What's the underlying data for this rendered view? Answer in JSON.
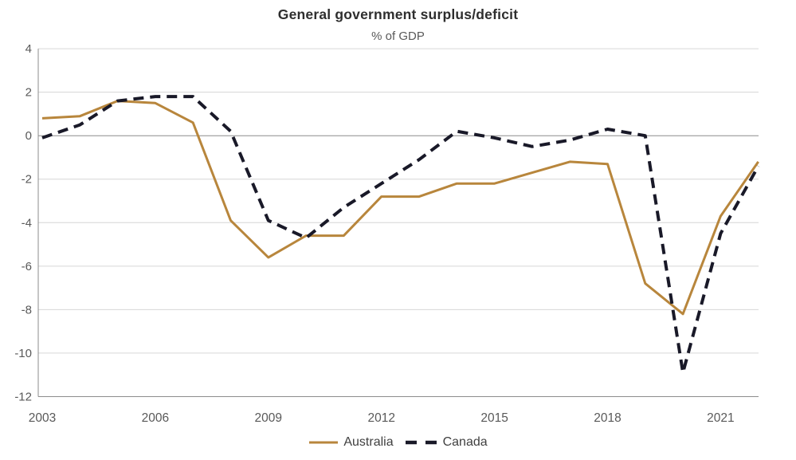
{
  "chart_data": {
    "type": "line",
    "title": "General government surplus/deficit",
    "subtitle": "% of GDP",
    "x": [
      2003,
      2004,
      2005,
      2006,
      2007,
      2008,
      2009,
      2010,
      2011,
      2012,
      2013,
      2014,
      2015,
      2016,
      2017,
      2018,
      2019,
      2020,
      2021,
      2022
    ],
    "series": [
      {
        "name": "Australia",
        "color": "#B8863C",
        "style": "solid",
        "values": [
          0.8,
          0.9,
          1.6,
          1.5,
          0.6,
          -3.9,
          -5.6,
          -4.6,
          -4.6,
          -2.8,
          -2.8,
          -2.2,
          -2.2,
          -1.7,
          -1.2,
          -1.3,
          -6.8,
          -8.2,
          -3.7,
          -1.2
        ]
      },
      {
        "name": "Canada",
        "color": "#191928",
        "style": "dashed",
        "values": [
          -0.1,
          0.5,
          1.6,
          1.8,
          1.8,
          0.2,
          -3.9,
          -4.7,
          -3.3,
          -2.2,
          -1.1,
          0.2,
          -0.1,
          -0.5,
          -0.2,
          0.3,
          0.0,
          -10.9,
          -4.5,
          -1.4
        ]
      }
    ],
    "ylim": [
      -12,
      4
    ],
    "y_ticks": [
      4,
      2,
      0,
      -2,
      -4,
      -6,
      -8,
      -10,
      -12
    ],
    "x_tick_labels": [
      2003,
      2006,
      2009,
      2012,
      2015,
      2018,
      2021
    ],
    "grid": "horizontal",
    "legend_position": "bottom",
    "colors": {
      "gridline": "#D6D6D6",
      "zero_line": "#8C8C8C",
      "axis_line": "#8C8C8C",
      "tick_label": "#595959"
    }
  }
}
